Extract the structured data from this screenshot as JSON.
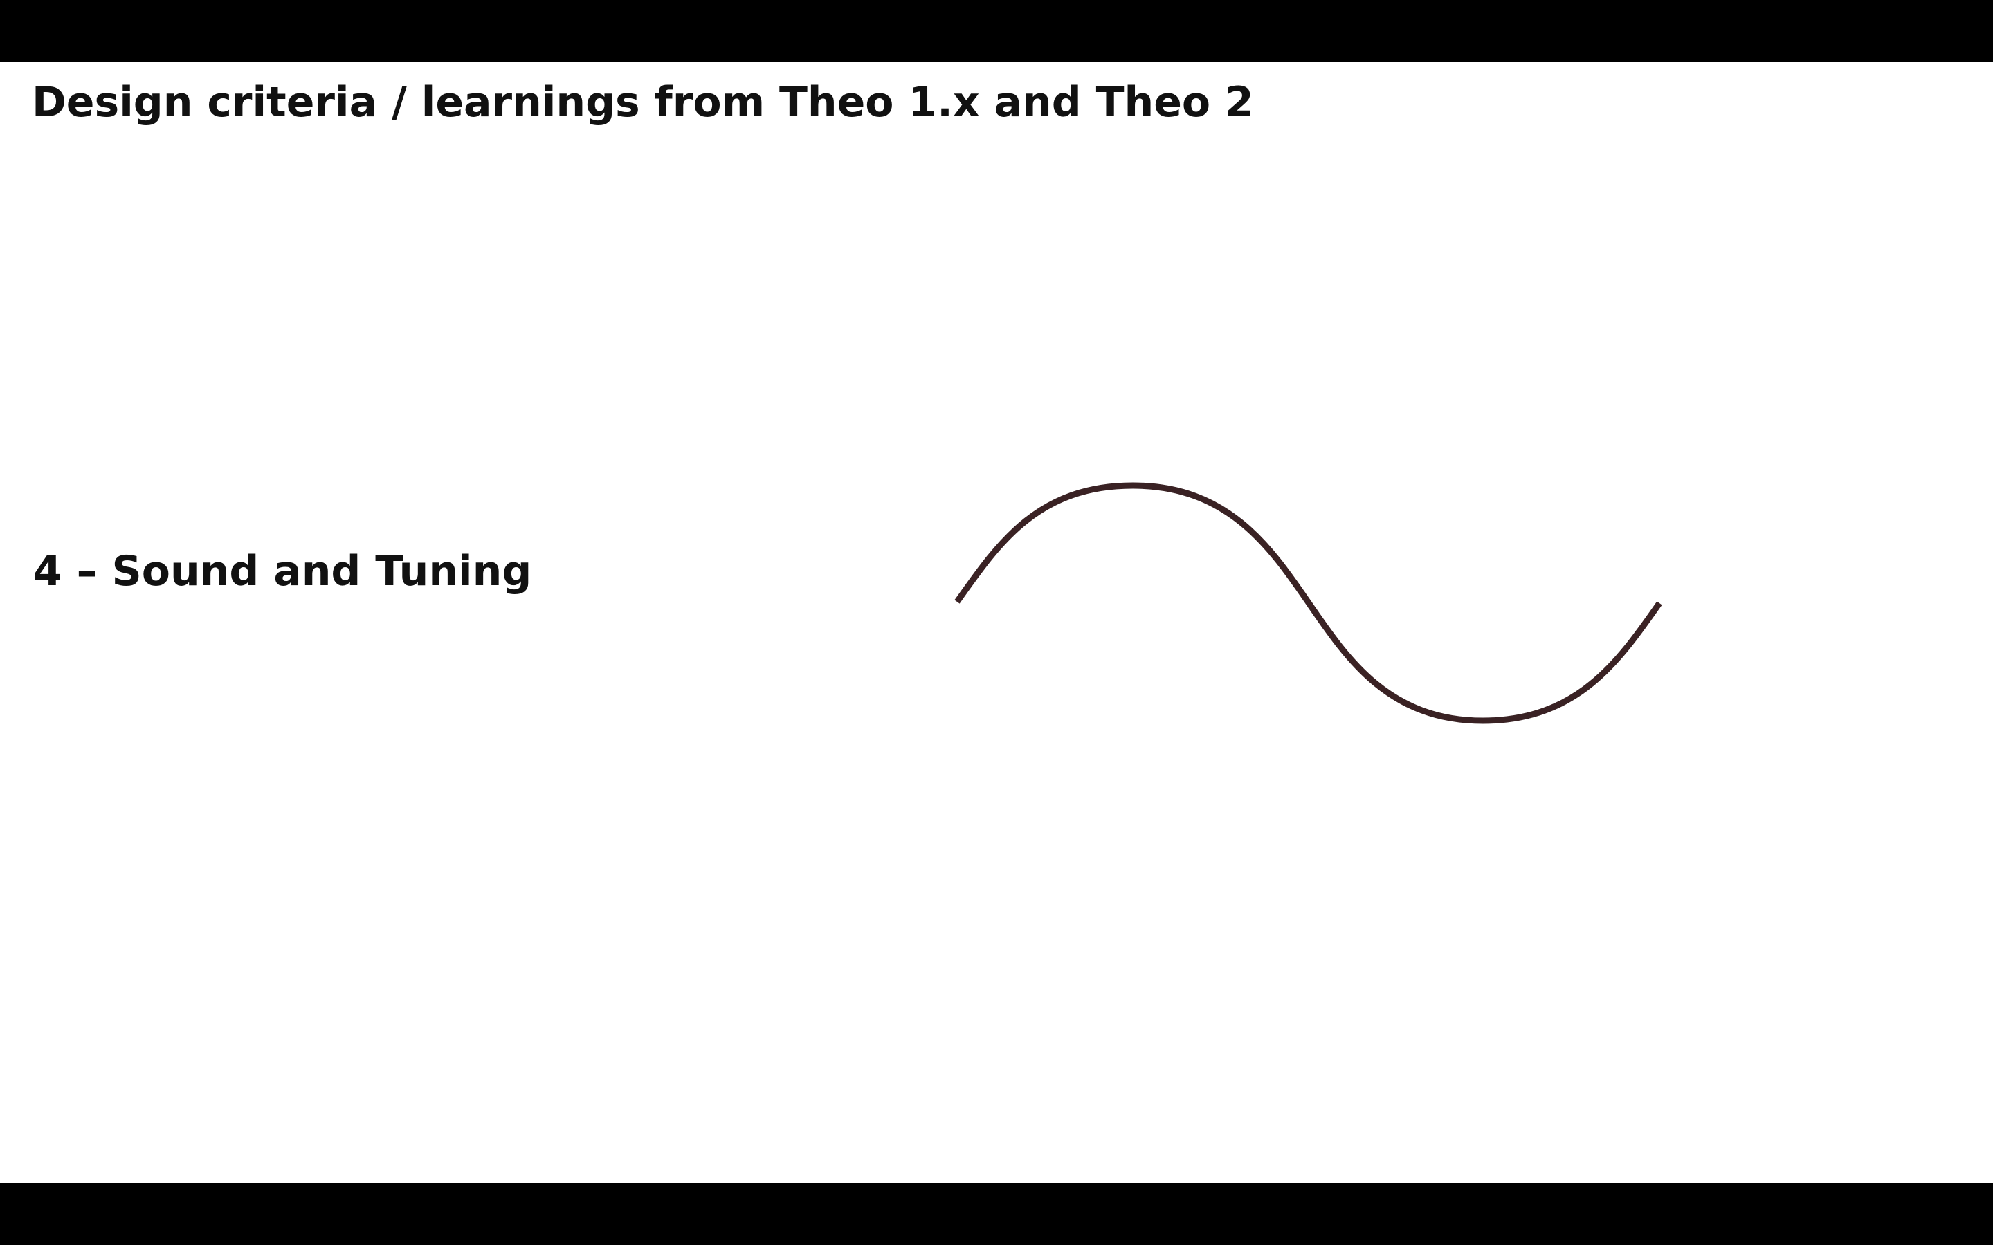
{
  "slide": {
    "title": "Design criteria / learnings from Theo 1.x and Theo 2",
    "section_heading": "4 – Sound and Tuning",
    "background_color": "#ffffff",
    "letterbox_color": "#000000",
    "wave": {
      "icon": "sine-wave-icon",
      "stroke_color": "#3a2224"
    }
  }
}
